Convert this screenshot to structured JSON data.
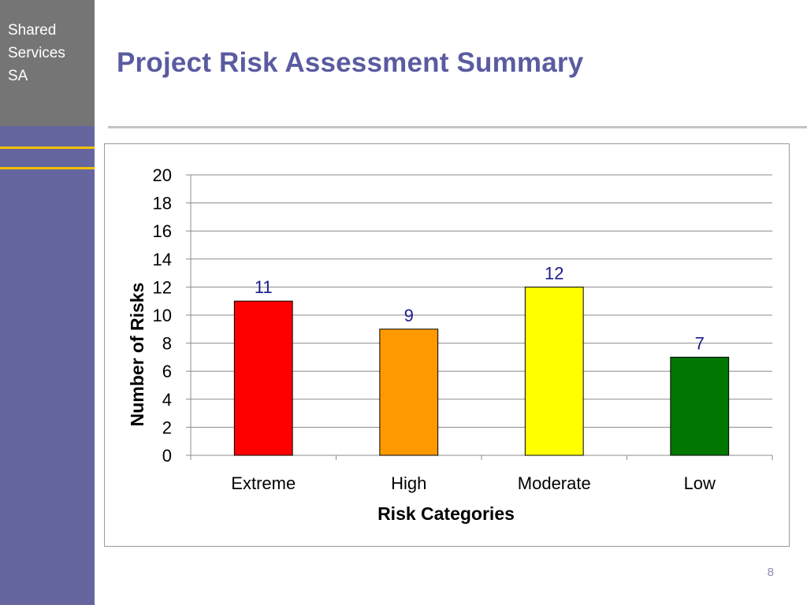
{
  "sidebar": {
    "logo_text": "Shared\nServices\nSA",
    "colors": {
      "sidebar": "#6566a0",
      "logo_box": "#757575",
      "accent_lines": "#f2c000"
    }
  },
  "slide": {
    "title": "Project Risk Assessment Summary",
    "page_number": "8",
    "title_color": "#5a5ba0"
  },
  "chart_data": {
    "type": "bar",
    "categories": [
      "Extreme",
      "High",
      "Moderate",
      "Low"
    ],
    "values": [
      11,
      9,
      12,
      7
    ],
    "data_labels": [
      "11",
      "9",
      "12",
      "7"
    ],
    "bar_colors": [
      "#ff0000",
      "#ff9900",
      "#ffff00",
      "#007700"
    ],
    "y_ticks": [
      "0",
      "2",
      "4",
      "6",
      "8",
      "10",
      "12",
      "14",
      "16",
      "18",
      "20"
    ],
    "xlabel": "Risk Categories",
    "ylabel": "Number of Risks",
    "ylim": [
      0,
      20
    ],
    "grid": true,
    "legend": false,
    "data_label_color": "#1a1a8c"
  }
}
